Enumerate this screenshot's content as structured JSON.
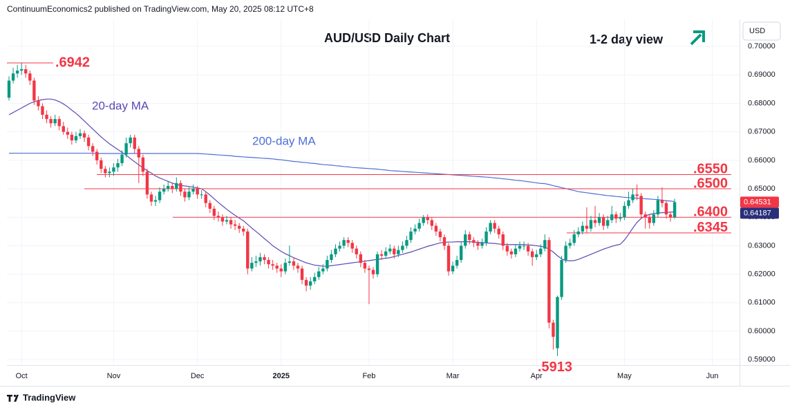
{
  "header": "ContinuumEconomics2 published on TradingView.com, May 20, 2025 08:12 UTC+8",
  "footer": "TradingView",
  "chart_data": {
    "type": "candlestick",
    "title": "AUD/USD Daily Chart",
    "subtitle": "1-2 day view",
    "currency": "USD",
    "categories": [
      null,
      null,
      null,
      "Oct",
      null,
      null,
      null,
      null,
      null,
      null,
      null,
      null,
      null,
      null,
      null,
      null,
      null,
      null,
      null,
      null,
      null,
      null,
      null,
      null,
      null,
      "Nov",
      null,
      null,
      null,
      null,
      null,
      null,
      null,
      null,
      null,
      null,
      null,
      null,
      null,
      null,
      null,
      null,
      null,
      null,
      null,
      "Dec",
      null,
      null,
      null,
      null,
      null,
      null,
      null,
      null,
      null,
      null,
      null,
      null,
      null,
      null,
      null,
      null,
      null,
      null,
      null,
      "2025",
      null,
      null,
      null,
      null,
      null,
      null,
      null,
      null,
      null,
      null,
      null,
      null,
      null,
      null,
      null,
      null,
      null,
      null,
      null,
      null,
      "Feb",
      null,
      null,
      null,
      null,
      null,
      null,
      null,
      null,
      null,
      null,
      null,
      null,
      null,
      null,
      null,
      null,
      null,
      null,
      null,
      "Mar",
      null,
      null,
      null,
      null,
      null,
      null,
      null,
      null,
      null,
      null,
      null,
      null,
      null,
      null,
      null,
      null,
      null,
      null,
      null,
      "Apr",
      null,
      null,
      null,
      null,
      null,
      null,
      null,
      null,
      null,
      null,
      null,
      null,
      null,
      null,
      null,
      null,
      null,
      null,
      null,
      null,
      "May",
      null,
      null,
      null,
      null,
      null,
      null,
      null,
      null,
      null,
      null,
      null,
      null,
      null,
      null,
      null,
      null,
      null,
      null,
      null,
      null,
      "Jun",
      null,
      null,
      null,
      null,
      null,
      null
    ],
    "open": [
      0.682,
      0.688,
      0.6905,
      0.6915,
      0.692,
      0.6905,
      0.688,
      0.681,
      0.679,
      0.676,
      0.6745,
      0.673,
      0.6745,
      0.672,
      0.67,
      0.669,
      0.667,
      0.6685,
      0.6695,
      0.668,
      0.665,
      0.663,
      0.66,
      0.657,
      0.6555,
      0.656,
      0.6575,
      0.659,
      0.662,
      0.666,
      0.668,
      0.664,
      0.661,
      0.656,
      0.648,
      0.6455,
      0.646,
      0.649,
      0.65,
      0.651,
      0.65,
      0.652,
      0.649,
      0.647,
      0.649,
      0.65,
      0.648,
      0.648,
      0.645,
      0.643,
      0.6405,
      0.64,
      0.6385,
      0.639,
      0.6375,
      0.637,
      0.636,
      0.635,
      0.622,
      0.624,
      0.6245,
      0.626,
      0.625,
      0.6235,
      0.623,
      0.622,
      0.621,
      0.624,
      0.6245,
      0.623,
      0.622,
      0.618,
      0.616,
      0.6175,
      0.619,
      0.621,
      0.622,
      0.625,
      0.627,
      0.629,
      0.63,
      0.632,
      0.631,
      0.629,
      0.627,
      0.624,
      0.622,
      0.6215,
      0.62,
      0.627,
      0.6265,
      0.628,
      0.629,
      0.627,
      0.6285,
      0.63,
      0.632,
      0.635,
      0.636,
      0.638,
      0.64,
      0.639,
      0.637,
      0.635,
      0.633,
      0.63,
      0.621,
      0.623,
      0.625,
      0.63,
      0.634,
      0.632,
      0.631,
      0.63,
      0.631,
      0.635,
      0.638,
      0.636,
      0.634,
      0.63,
      0.628,
      0.627,
      0.629,
      0.63,
      0.63,
      0.628,
      0.626,
      0.627,
      0.629,
      0.632,
      0.603,
      0.594,
      0.612,
      0.625,
      0.63,
      0.631,
      0.634,
      0.635,
      0.637,
      0.636,
      0.639,
      0.638,
      0.64,
      0.637,
      0.639,
      0.641,
      0.6395,
      0.64,
      0.644,
      0.646,
      0.648,
      0.6475,
      0.641,
      0.64,
      0.638,
      0.641,
      0.646,
      0.645,
      0.641,
      0.64,
      null,
      null,
      null,
      null,
      null,
      null,
      null,
      null,
      null,
      null,
      null,
      null,
      null,
      null,
      null
    ],
    "high": [
      0.6895,
      0.6925,
      0.6935,
      0.6942,
      0.6935,
      0.6915,
      0.689,
      0.6825,
      0.68,
      0.6775,
      0.6755,
      0.676,
      0.6755,
      0.6735,
      0.6715,
      0.67,
      0.67,
      0.671,
      0.6705,
      0.669,
      0.666,
      0.664,
      0.661,
      0.658,
      0.6575,
      0.659,
      0.6605,
      0.6635,
      0.668,
      0.669,
      0.669,
      0.665,
      0.662,
      0.657,
      0.649,
      0.6475,
      0.6505,
      0.6515,
      0.6525,
      0.652,
      0.654,
      0.653,
      0.65,
      0.6505,
      0.6515,
      0.651,
      0.6495,
      0.649,
      0.646,
      0.644,
      0.642,
      0.641,
      0.6405,
      0.64,
      0.639,
      0.638,
      0.637,
      0.636,
      0.626,
      0.6265,
      0.6275,
      0.627,
      0.626,
      0.625,
      0.624,
      0.6235,
      0.6255,
      0.63,
      0.626,
      0.624,
      0.623,
      0.619,
      0.619,
      0.6205,
      0.6225,
      0.6235,
      0.6265,
      0.6285,
      0.6305,
      0.6315,
      0.633,
      0.633,
      0.632,
      0.63,
      0.628,
      0.625,
      0.623,
      0.6225,
      0.628,
      0.6285,
      0.6295,
      0.6305,
      0.63,
      0.63,
      0.6315,
      0.6335,
      0.6365,
      0.6375,
      0.6395,
      0.6408,
      0.641,
      0.64,
      0.638,
      0.636,
      0.634,
      0.631,
      0.6245,
      0.6265,
      0.6315,
      0.6355,
      0.635,
      0.633,
      0.632,
      0.6325,
      0.6365,
      0.639,
      0.639,
      0.637,
      0.635,
      0.631,
      0.629,
      0.6305,
      0.6315,
      0.6315,
      0.631,
      0.629,
      0.6285,
      0.6305,
      0.634,
      0.633,
      0.604,
      0.6125,
      0.6265,
      0.6315,
      0.6325,
      0.6355,
      0.6365,
      0.6385,
      0.6435,
      0.6405,
      0.644,
      0.6415,
      0.641,
      0.6405,
      0.644,
      0.642,
      0.6415,
      0.6455,
      0.649,
      0.65,
      0.6515,
      0.6485,
      0.642,
      0.641,
      0.6425,
      0.6475,
      0.6505,
      0.646,
      0.642,
      0.6465,
      null,
      null,
      null,
      null,
      null,
      null,
      null,
      null,
      null,
      null,
      null,
      null,
      null,
      null,
      null
    ],
    "low": [
      0.681,
      0.687,
      0.689,
      0.69,
      0.689,
      0.6865,
      0.6795,
      0.6775,
      0.6745,
      0.673,
      0.6715,
      0.672,
      0.6705,
      0.669,
      0.6675,
      0.6655,
      0.666,
      0.6675,
      0.6665,
      0.6635,
      0.6615,
      0.6585,
      0.6555,
      0.654,
      0.654,
      0.6545,
      0.656,
      0.658,
      0.661,
      0.6645,
      0.6625,
      0.652,
      0.6545,
      0.6465,
      0.644,
      0.644,
      0.645,
      0.648,
      0.649,
      0.6485,
      0.649,
      0.6475,
      0.6455,
      0.646,
      0.648,
      0.6465,
      0.6465,
      0.6435,
      0.6415,
      0.639,
      0.6385,
      0.637,
      0.6375,
      0.636,
      0.6355,
      0.6345,
      0.6335,
      0.62,
      0.621,
      0.6225,
      0.623,
      0.6235,
      0.622,
      0.6215,
      0.6205,
      0.619,
      0.62,
      0.623,
      0.6215,
      0.6205,
      0.6165,
      0.614,
      0.6145,
      0.6165,
      0.618,
      0.62,
      0.621,
      0.624,
      0.626,
      0.628,
      0.629,
      0.6295,
      0.6275,
      0.6255,
      0.6225,
      0.6205,
      0.6095,
      0.6185,
      0.619,
      0.625,
      0.6255,
      0.627,
      0.6255,
      0.626,
      0.6275,
      0.629,
      0.631,
      0.634,
      0.635,
      0.637,
      0.6375,
      0.6355,
      0.6335,
      0.6315,
      0.6285,
      0.6195,
      0.62,
      0.622,
      0.624,
      0.629,
      0.6305,
      0.6295,
      0.6285,
      0.629,
      0.63,
      0.634,
      0.6345,
      0.6325,
      0.6285,
      0.6265,
      0.6255,
      0.626,
      0.628,
      0.6285,
      0.6265,
      0.623,
      0.625,
      0.626,
      0.628,
      0.601,
      0.5935,
      0.5913,
      0.611,
      0.624,
      0.629,
      0.63,
      0.633,
      0.634,
      0.6345,
      0.635,
      0.6365,
      0.637,
      0.6355,
      0.636,
      0.638,
      0.638,
      0.6385,
      0.639,
      0.643,
      0.645,
      0.646,
      0.6395,
      0.636,
      0.636,
      0.637,
      0.64,
      0.6435,
      0.6395,
      0.6385,
      0.6395,
      null,
      null,
      null,
      null,
      null,
      null,
      null,
      null,
      null,
      null,
      null,
      null,
      null,
      null,
      null
    ],
    "close": [
      0.688,
      0.6905,
      0.6915,
      0.692,
      0.6905,
      0.688,
      0.681,
      0.679,
      0.676,
      0.6745,
      0.673,
      0.6745,
      0.672,
      0.67,
      0.669,
      0.667,
      0.6685,
      0.6695,
      0.668,
      0.665,
      0.663,
      0.66,
      0.657,
      0.6555,
      0.656,
      0.6575,
      0.659,
      0.662,
      0.666,
      0.668,
      0.664,
      0.661,
      0.656,
      0.648,
      0.6455,
      0.646,
      0.649,
      0.65,
      0.651,
      0.65,
      0.652,
      0.649,
      0.647,
      0.649,
      0.65,
      0.648,
      0.648,
      0.645,
      0.643,
      0.6405,
      0.64,
      0.6385,
      0.639,
      0.6375,
      0.637,
      0.636,
      0.635,
      0.622,
      0.624,
      0.6245,
      0.626,
      0.625,
      0.6235,
      0.623,
      0.622,
      0.621,
      0.624,
      0.6245,
      0.623,
      0.622,
      0.618,
      0.616,
      0.6175,
      0.619,
      0.621,
      0.622,
      0.625,
      0.627,
      0.629,
      0.63,
      0.632,
      0.631,
      0.629,
      0.627,
      0.624,
      0.622,
      0.6215,
      0.62,
      0.627,
      0.6265,
      0.628,
      0.629,
      0.627,
      0.6285,
      0.63,
      0.632,
      0.635,
      0.636,
      0.638,
      0.64,
      0.639,
      0.637,
      0.635,
      0.633,
      0.63,
      0.621,
      0.623,
      0.625,
      0.63,
      0.634,
      0.632,
      0.631,
      0.63,
      0.631,
      0.635,
      0.638,
      0.636,
      0.634,
      0.63,
      0.628,
      0.627,
      0.629,
      0.63,
      0.63,
      0.628,
      0.626,
      0.627,
      0.629,
      0.632,
      0.603,
      0.598,
      0.612,
      0.625,
      0.63,
      0.631,
      0.634,
      0.635,
      0.637,
      0.636,
      0.639,
      0.638,
      0.64,
      0.637,
      0.639,
      0.641,
      0.6395,
      0.64,
      0.644,
      0.646,
      0.648,
      0.6475,
      0.641,
      0.64,
      0.638,
      0.641,
      0.646,
      0.645,
      0.641,
      0.64,
      0.6453,
      null,
      null,
      null,
      null,
      null,
      null,
      null,
      null,
      null,
      null,
      null,
      null,
      null,
      null,
      null
    ],
    "up_color": "#089981",
    "down_color": "#f23645",
    "series": [
      {
        "name": "20-day MA",
        "color": "#5b49b5",
        "values": [
          0.676,
          0.6768,
          0.6776,
          0.6784,
          0.6792,
          0.68,
          0.6806,
          0.681,
          0.6813,
          0.6815,
          0.6815,
          0.6812,
          0.6806,
          0.6798,
          0.6788,
          0.6776,
          0.6765,
          0.6752,
          0.6738,
          0.6724,
          0.671,
          0.6696,
          0.6682,
          0.667,
          0.6658,
          0.6648,
          0.6638,
          0.6628,
          0.6618,
          0.6606,
          0.6595,
          0.6584,
          0.6574,
          0.6564,
          0.6555,
          0.6545,
          0.6538,
          0.6532,
          0.6526,
          0.652,
          0.6515,
          0.6512,
          0.651,
          0.6508,
          0.6506,
          0.6503,
          0.65,
          0.649,
          0.6478,
          0.6465,
          0.6452,
          0.644,
          0.6428,
          0.6417,
          0.6407,
          0.6397,
          0.6388,
          0.6375,
          0.6362,
          0.635,
          0.6338,
          0.6325,
          0.6313,
          0.63,
          0.629,
          0.628,
          0.6272,
          0.6265,
          0.6258,
          0.6252,
          0.6246,
          0.624,
          0.6236,
          0.6232,
          0.623,
          0.6228,
          0.6228,
          0.623,
          0.6232,
          0.6234,
          0.6236,
          0.6238,
          0.624,
          0.6242,
          0.6244,
          0.6246,
          0.6248,
          0.625,
          0.6252,
          0.6254,
          0.6256,
          0.6258,
          0.6262,
          0.6266,
          0.627,
          0.6274,
          0.6278,
          0.6283,
          0.6288,
          0.6293,
          0.6298,
          0.6302,
          0.6306,
          0.631,
          0.6312,
          0.6313,
          0.6313,
          0.6314,
          0.6314,
          0.6314,
          0.6314,
          0.6313,
          0.6312,
          0.6311,
          0.631,
          0.6309,
          0.6308,
          0.6306,
          0.6305,
          0.6304,
          0.6304,
          0.6304,
          0.6304,
          0.6304,
          0.6303,
          0.6302,
          0.63,
          0.6298,
          0.6295,
          0.6288,
          0.6278,
          0.6265,
          0.6254,
          0.6248,
          0.6247,
          0.6248,
          0.6252,
          0.6258,
          0.6264,
          0.627,
          0.6276,
          0.6282,
          0.6288,
          0.6293,
          0.6298,
          0.6302,
          0.6305,
          0.632,
          0.634,
          0.6362,
          0.6382,
          0.6396,
          0.6405,
          0.641,
          0.6413,
          0.6415,
          0.6416,
          0.6417,
          0.6418,
          0.6419,
          null,
          null,
          null,
          null,
          null,
          null,
          null,
          null,
          null,
          null,
          null,
          null,
          null,
          null,
          null
        ]
      },
      {
        "name": "200-day MA",
        "color": "#4c6fd6",
        "values": [
          0.6625,
          0.6625,
          0.6625,
          0.6625,
          0.6625,
          0.6625,
          0.6625,
          0.6625,
          0.6625,
          0.6625,
          0.6625,
          0.6625,
          0.6625,
          0.6625,
          0.6625,
          0.6625,
          0.6625,
          0.6625,
          0.6625,
          0.6625,
          0.6625,
          0.6624,
          0.6624,
          0.6624,
          0.6624,
          0.6624,
          0.6624,
          0.6624,
          0.6624,
          0.6624,
          0.6624,
          0.6624,
          0.6624,
          0.6624,
          0.6624,
          0.6624,
          0.6624,
          0.6624,
          0.6624,
          0.6624,
          0.6624,
          0.6624,
          0.6624,
          0.6624,
          0.6624,
          0.6624,
          0.6623,
          0.6622,
          0.6621,
          0.662,
          0.6619,
          0.6618,
          0.6617,
          0.6616,
          0.6614,
          0.6613,
          0.6612,
          0.6611,
          0.661,
          0.6609,
          0.6608,
          0.6607,
          0.6606,
          0.6605,
          0.6603,
          0.6602,
          0.66,
          0.6598,
          0.6596,
          0.6595,
          0.6593,
          0.6592,
          0.659,
          0.6589,
          0.6587,
          0.6585,
          0.6584,
          0.6583,
          0.6581,
          0.658,
          0.6578,
          0.6577,
          0.6575,
          0.6574,
          0.6573,
          0.6572,
          0.6571,
          0.657,
          0.6569,
          0.6567,
          0.6566,
          0.6564,
          0.6563,
          0.6562,
          0.6561,
          0.656,
          0.6559,
          0.6558,
          0.6557,
          0.6556,
          0.6555,
          0.6554,
          0.6553,
          0.6552,
          0.6551,
          0.655,
          0.6549,
          0.6548,
          0.6547,
          0.6546,
          0.6545,
          0.6544,
          0.6543,
          0.6542,
          0.6541,
          0.654,
          0.6538,
          0.6537,
          0.6535,
          0.6534,
          0.6532,
          0.653,
          0.6529,
          0.6527,
          0.6525,
          0.6523,
          0.6521,
          0.6519,
          0.6518,
          0.6515,
          0.6511,
          0.6508,
          0.6504,
          0.6501,
          0.6497,
          0.6494,
          0.649,
          0.6488,
          0.6486,
          0.6484,
          0.6482,
          0.648,
          0.6478,
          0.6476,
          0.6475,
          0.6473,
          0.6472,
          0.647,
          0.6469,
          0.6468,
          0.6467,
          0.6466,
          0.6465,
          0.6464,
          0.6463,
          0.6462,
          0.646,
          0.6458,
          0.6457,
          0.6455,
          null,
          null,
          null,
          null,
          null,
          null,
          null,
          null,
          null,
          null,
          null,
          null,
          null,
          null,
          null
        ]
      }
    ],
    "levels": [
      {
        "value": 0.6942,
        "label": ".6942"
      },
      {
        "value": 0.655,
        "label": ".6550"
      },
      {
        "value": 0.65,
        "label": ".6500"
      },
      {
        "value": 0.64,
        "label": ".6400"
      },
      {
        "value": 0.6345,
        "label": ".6345"
      }
    ],
    "level_color": "#f23645",
    "annotations": [
      {
        "value": 0.5913,
        "label": ".5913"
      }
    ],
    "price_labels": [
      {
        "value": 0.64531,
        "label": "0.64531",
        "color": "#f23645"
      },
      {
        "value": 0.64187,
        "label": "0.64187",
        "color": "#2a2f7a"
      }
    ],
    "ylim": [
      0.5881,
      0.7095
    ],
    "yticks": [
      {
        "value": 0.59,
        "label": "0.59000"
      },
      {
        "value": 0.6,
        "label": "0.60000"
      },
      {
        "value": 0.61,
        "label": "0.61000"
      },
      {
        "value": 0.62,
        "label": "0.62000"
      },
      {
        "value": 0.63,
        "label": "0.63000"
      },
      {
        "value": 0.64,
        "label": "0.64000"
      },
      {
        "value": 0.65,
        "label": "0.65000"
      },
      {
        "value": 0.66,
        "label": "0.66000"
      },
      {
        "value": 0.67,
        "label": "0.67000"
      },
      {
        "value": 0.68,
        "label": "0.68000"
      },
      {
        "value": 0.69,
        "label": "0.69000"
      },
      {
        "value": 0.7,
        "label": "0.70000"
      }
    ],
    "grid": true
  }
}
